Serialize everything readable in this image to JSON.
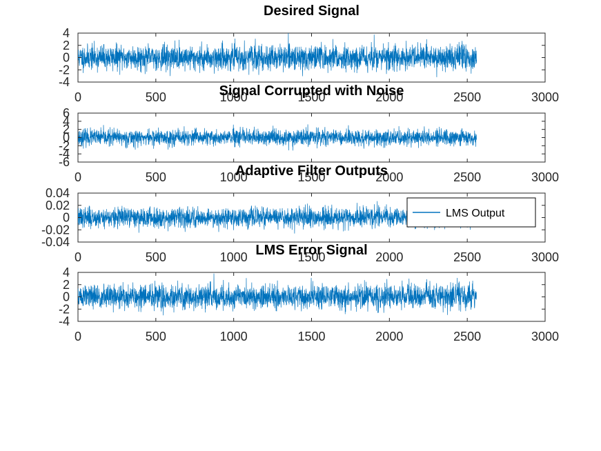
{
  "chart_data": [
    {
      "type": "line",
      "title": "Desired Signal",
      "xlim": [
        0,
        3000
      ],
      "ylim": [
        -4,
        4
      ],
      "xticks": [
        0,
        500,
        1000,
        1500,
        2000,
        2500,
        3000
      ],
      "xtick_labels": [
        "0",
        "500",
        "1000",
        "1500",
        "2000",
        "2500",
        "3000"
      ],
      "yticks": [
        -4,
        -2,
        0,
        2,
        4
      ],
      "ytick_labels": [
        "-4",
        "-2",
        "0",
        "2",
        "4"
      ],
      "series": [
        {
          "color": "#0072BD",
          "n_points": 2560,
          "amplitude": 1.0,
          "seed": 11
        }
      ],
      "grid": false
    },
    {
      "type": "line",
      "title": "Signal Corrupted with Noise",
      "xlim": [
        0,
        3000
      ],
      "ylim": [
        -6,
        6
      ],
      "xticks": [
        0,
        500,
        1000,
        1500,
        2000,
        2500,
        3000
      ],
      "xtick_labels": [
        "0",
        "500",
        "1000",
        "1500",
        "2000",
        "2500",
        "3000"
      ],
      "yticks": [
        -6,
        -4,
        -2,
        0,
        2,
        4,
        6
      ],
      "ytick_labels": [
        "-6",
        "-4",
        "-2",
        "0",
        "2",
        "4",
        "6"
      ],
      "series": [
        {
          "color": "#0072BD",
          "n_points": 2560,
          "amplitude": 1.0,
          "seed": 23
        }
      ],
      "grid": false
    },
    {
      "type": "line",
      "title": "Adaptive Filter Outputs",
      "xlim": [
        0,
        3000
      ],
      "ylim": [
        -0.04,
        0.04
      ],
      "xticks": [
        0,
        500,
        1000,
        1500,
        2000,
        2500,
        3000
      ],
      "xtick_labels": [
        "0",
        "500",
        "1000",
        "1500",
        "2000",
        "2500",
        "3000"
      ],
      "yticks": [
        -0.04,
        -0.02,
        0,
        0.02,
        0.04
      ],
      "ytick_labels": [
        "-0.04",
        "-0.02",
        "0",
        "0.02",
        "0.04"
      ],
      "series": [
        {
          "name": "LMS Output",
          "color": "#0072BD",
          "n_points": 2560,
          "amplitude": 0.008,
          "seed": 37
        }
      ],
      "legend": {
        "position": "top-right",
        "entries": [
          "LMS Output"
        ]
      },
      "grid": false
    },
    {
      "type": "line",
      "title": "LMS Error Signal",
      "xlim": [
        0,
        3000
      ],
      "ylim": [
        -4,
        4
      ],
      "xticks": [
        0,
        500,
        1000,
        1500,
        2000,
        2500,
        3000
      ],
      "xtick_labels": [
        "0",
        "500",
        "1000",
        "1500",
        "2000",
        "2500",
        "3000"
      ],
      "yticks": [
        -4,
        -2,
        0,
        2,
        4
      ],
      "ytick_labels": [
        "-4",
        "-2",
        "0",
        "2",
        "4"
      ],
      "series": [
        {
          "color": "#0072BD",
          "n_points": 2560,
          "amplitude": 1.0,
          "seed": 51
        }
      ],
      "grid": false
    }
  ]
}
